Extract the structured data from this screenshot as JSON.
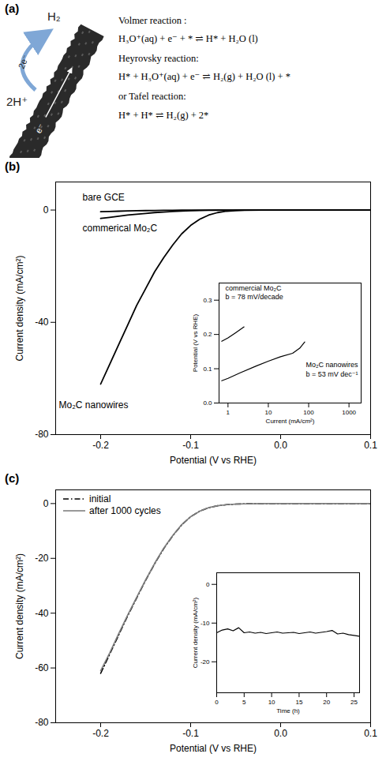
{
  "diagram": {
    "panel": "(a)",
    "labels": {
      "product": "H₂",
      "reactant": "2H⁺",
      "transfer": "2e⁻",
      "electron": "e⁻"
    },
    "equations": [
      "Volmer reaction :",
      "H₃O⁺(aq) + e⁻ + * ⇌ H* + H₂O (l)",
      "Heyrovsky reaction:",
      "H* + H₃O⁺(aq) + e⁻ ⇌ H₂(g) + H₂O (l) + *",
      "or Tafel reaction:",
      "H* + H* ⇌ H₂(g) + 2*"
    ]
  },
  "chart_data": [
    {
      "panel": "(b)",
      "type": "line",
      "x_label": "Potential (V vs RHE)",
      "y_label": "Current density (mA/cm²)",
      "xlim": [
        -0.25,
        0.1
      ],
      "ylim": [
        -80,
        10
      ],
      "xticks": [
        -0.2,
        -0.1,
        {
          "value": 0,
          "label": "0.0"
        },
        0.1
      ],
      "yticks": [
        -80,
        -40,
        0
      ],
      "x": [
        -0.2,
        -0.19,
        -0.18,
        -0.17,
        -0.16,
        -0.15,
        -0.14,
        -0.13,
        -0.12,
        -0.11,
        -0.1,
        -0.09,
        -0.08,
        -0.07,
        -0.06,
        -0.05,
        -0.04,
        -0.02,
        0,
        0.05,
        0.1
      ],
      "series": [
        {
          "name": "bare GCE",
          "color": "#000000",
          "line_style": "solid",
          "values": [
            -0.6,
            -0.5,
            -0.4,
            -0.3,
            -0.25,
            -0.2,
            -0.15,
            -0.1,
            -0.08,
            -0.06,
            -0.05,
            -0.04,
            -0.03,
            -0.02,
            -0.01,
            0,
            0,
            0,
            0,
            0,
            0
          ]
        },
        {
          "name": "commerical Mo₂C",
          "color": "#000000",
          "line_style": "solid",
          "values": [
            -3,
            -2.6,
            -2.2,
            -1.8,
            -1.5,
            -1.2,
            -0.9,
            -0.7,
            -0.5,
            -0.35,
            -0.25,
            -0.15,
            -0.1,
            -0.06,
            -0.03,
            -0.01,
            0,
            0,
            0,
            0,
            0
          ]
        },
        {
          "name": "Mo₂C nanowires",
          "color": "#000000",
          "line_style": "solid",
          "values": [
            -62,
            -55,
            -48,
            -41,
            -34,
            -28,
            -22,
            -17,
            -12.5,
            -8.5,
            -5.5,
            -3.3,
            -1.8,
            -0.9,
            -0.4,
            -0.2,
            -0.1,
            0,
            0,
            0,
            0
          ]
        }
      ]
    },
    {
      "type": "line",
      "log": "x",
      "x_label": "Current (mA/cm²)",
      "y_label": "Potential (V vs RHE)",
      "xlim": [
        0.6,
        2000
      ],
      "ylim": [
        0,
        0.35
      ],
      "xticks": [
        1,
        10,
        100,
        1000
      ],
      "yticks": [
        {
          "value": 0,
          "label": "0.0"
        },
        0.1,
        0.2,
        0.3
      ],
      "series": [
        {
          "name": "commercial Mo₂C",
          "annotation": "b = 78 mV/decade",
          "color": "#000000",
          "x": [
            0.7,
            1,
            1.5,
            2,
            2.5
          ],
          "values": [
            0.18,
            0.19,
            0.204,
            0.214,
            0.222
          ]
        },
        {
          "name": "Mo₂C nanowires",
          "annotation": "b = 53 mV dec⁻¹",
          "color": "#000000",
          "x": [
            0.7,
            1,
            2,
            5,
            10,
            20,
            40,
            60,
            80
          ],
          "values": [
            0.065,
            0.072,
            0.088,
            0.108,
            0.122,
            0.135,
            0.145,
            0.16,
            0.178
          ]
        }
      ]
    },
    {
      "panel": "(c)",
      "type": "line",
      "x_label": "Potential (V vs RHE)",
      "y_label": "Current density (mA/cm²)",
      "xlim": [
        -0.25,
        0.1
      ],
      "ylim": [
        -80,
        5
      ],
      "xticks": [
        -0.2,
        -0.1,
        {
          "value": 0,
          "label": "0.0"
        },
        0.1
      ],
      "yticks": [
        -80,
        -60,
        -40,
        -20,
        0
      ],
      "legend": "upper left",
      "x": [
        -0.2,
        -0.19,
        -0.18,
        -0.17,
        -0.16,
        -0.15,
        -0.14,
        -0.13,
        -0.12,
        -0.11,
        -0.1,
        -0.09,
        -0.08,
        -0.07,
        -0.06,
        -0.05,
        -0.04,
        -0.02,
        0,
        0.05,
        0.1
      ],
      "series": [
        {
          "name": "initial",
          "color": "#000000",
          "line_style": "dashdot",
          "values": [
            -62,
            -55,
            -48,
            -41,
            -34.5,
            -28,
            -22,
            -16.5,
            -11.8,
            -7.8,
            -4.8,
            -2.8,
            -1.5,
            -0.8,
            -0.4,
            -0.2,
            -0.1,
            0,
            0,
            0,
            0
          ]
        },
        {
          "name": "after 1000 cycles",
          "color": "#808080",
          "line_style": "solid",
          "values": [
            -61,
            -54.5,
            -47.5,
            -40.7,
            -34.2,
            -27.8,
            -21.8,
            -16.3,
            -11.7,
            -7.7,
            -4.8,
            -2.8,
            -1.5,
            -0.8,
            -0.4,
            -0.2,
            -0.1,
            0,
            0,
            0,
            0
          ]
        }
      ]
    },
    {
      "type": "line",
      "x_label": "Time (h)",
      "y_label": "Current density (mA/cm²)",
      "xlim": [
        0,
        26
      ],
      "ylim": [
        -28,
        3
      ],
      "xticks": [
        0,
        5,
        10,
        15,
        20,
        25
      ],
      "yticks": [
        -20,
        -10,
        0
      ],
      "x": [
        0,
        1,
        2,
        3,
        4,
        5,
        6,
        7,
        8,
        9,
        10,
        11,
        12,
        13,
        14,
        15,
        16,
        17,
        18,
        19,
        20,
        21,
        22,
        23,
        24,
        25,
        26
      ],
      "series": [
        {
          "color": "#000000",
          "values": [
            -12.5,
            -11.8,
            -11.5,
            -12.0,
            -11.2,
            -12.5,
            -12.3,
            -12.6,
            -12.4,
            -12.7,
            -12.5,
            -12.3,
            -12.6,
            -12.5,
            -12.4,
            -12.7,
            -12.5,
            -12.3,
            -12.6,
            -12.4,
            -12.2,
            -11.9,
            -12.8,
            -12.6,
            -13.0,
            -13.2,
            -13.4
          ]
        }
      ]
    }
  ]
}
